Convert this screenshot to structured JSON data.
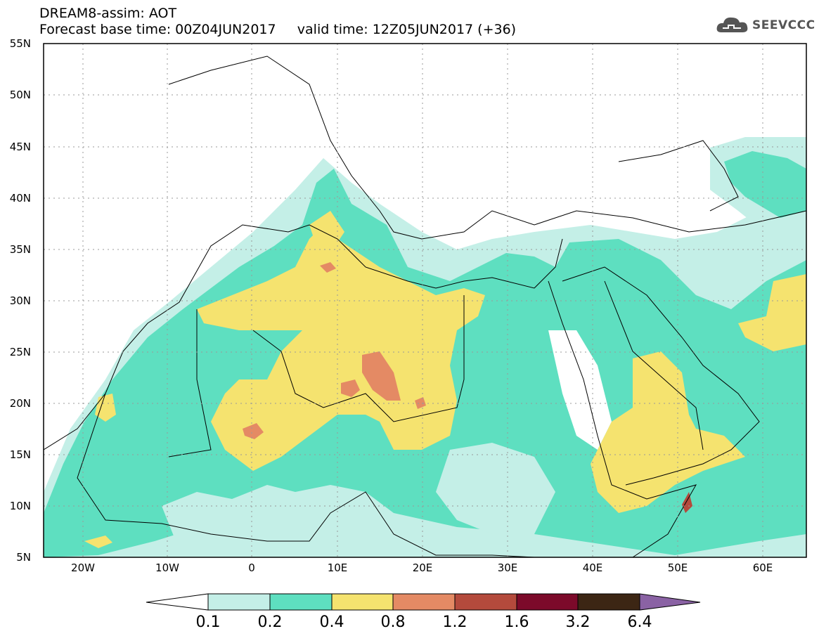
{
  "header": {
    "line1": "DREAM8-assim: AOT",
    "line2": "Forecast base time: 00Z04JUN2017     valid time: 12Z05JUN2017 (+36)"
  },
  "logo": {
    "text": "SEEVCCC",
    "icon": "cloud-icon"
  },
  "map": {
    "lat_labels": [
      "55N",
      "50N",
      "45N",
      "40N",
      "35N",
      "30N",
      "25N",
      "20N",
      "15N",
      "10N",
      "5N"
    ],
    "lon_labels": [
      "20W",
      "10W",
      "0",
      "10E",
      "20E",
      "30E",
      "40E",
      "50E",
      "60E"
    ],
    "region": "North Africa, Europe, Middle East"
  },
  "colorbar": {
    "labels": [
      "0.1",
      "0.2",
      "0.4",
      "0.8",
      "1.2",
      "1.6",
      "3.2",
      "6.4"
    ],
    "colors": [
      "#ffffff",
      "#c4efe7",
      "#5edfc0",
      "#f5e36f",
      "#e48a64",
      "#b44a3c",
      "#7c0a2a",
      "#3c2614",
      "#8a62a4"
    ]
  }
}
